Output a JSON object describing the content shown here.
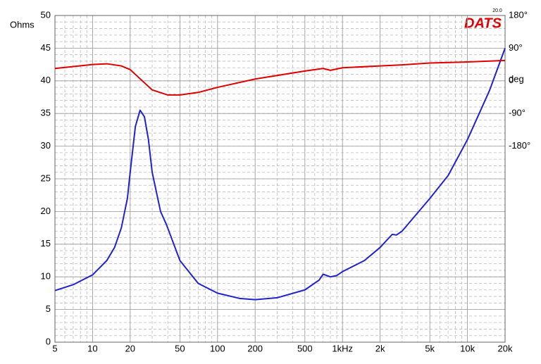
{
  "chart_data": {
    "type": "line",
    "x_scale": "log",
    "grid": true,
    "logo": "DATS",
    "logo_version": "20.0",
    "ylabel": "Ohms",
    "ylabel_color": "#2222cc",
    "y2label": "deg",
    "y2label_color": "#dd0000",
    "xlim": [
      5,
      20000
    ],
    "xticks": [
      5,
      10,
      20,
      50,
      100,
      200,
      500,
      {
        "value": 1000,
        "label": "1kHz"
      },
      {
        "value": 2000,
        "label": "2k"
      },
      {
        "value": 5000,
        "label": "5k"
      },
      {
        "value": 10000,
        "label": "10k"
      },
      {
        "value": 20000,
        "label": "20k"
      }
    ],
    "ylim": [
      0,
      50
    ],
    "yticks": [
      0,
      5,
      10,
      15,
      20,
      25,
      30,
      35,
      40,
      45,
      50
    ],
    "y2lim": [
      -720,
      180
    ],
    "y2ticks": [
      {
        "value": 180,
        "label": "180°"
      },
      {
        "value": 90,
        "label": "90°"
      },
      0,
      {
        "value": -90,
        "label": "-90°"
      },
      {
        "value": -180,
        "label": "-180°"
      }
    ],
    "series": [
      {
        "color": "#2222cc",
        "x": [
          5,
          7,
          10,
          13,
          15,
          17,
          19,
          20,
          22,
          24,
          26,
          28,
          30,
          35,
          39,
          50,
          70,
          100,
          150,
          200,
          300,
          500,
          650,
          700,
          800,
          900,
          1000,
          1500,
          2000,
          2500,
          2700,
          3000,
          5000,
          7000,
          10000,
          15000,
          20000
        ],
        "values": [
          7.9,
          8.8,
          10.3,
          12.5,
          14.5,
          17.5,
          22,
          26,
          33,
          35.5,
          34.5,
          31,
          26,
          20,
          18,
          12.5,
          9,
          7.5,
          6.7,
          6.5,
          6.8,
          8,
          9.5,
          10.4,
          10,
          10.2,
          10.8,
          12.5,
          14.5,
          16.5,
          16.4,
          17,
          22,
          25.5,
          31,
          38.5,
          45
        ]
      },
      {
        "color": "#dd0000",
        "axis": "y2",
        "x": [
          5,
          10,
          13,
          17,
          20,
          25,
          30,
          40,
          50,
          70,
          100,
          200,
          500,
          700,
          800,
          1000,
          2000,
          3000,
          5000,
          10000,
          20000
        ],
        "values": [
          34,
          45,
          47,
          41,
          31,
          0,
          -25,
          -39,
          -39,
          -32,
          -18,
          5,
          27,
          34,
          29,
          36,
          41,
          44,
          49,
          52,
          56
        ]
      }
    ]
  }
}
